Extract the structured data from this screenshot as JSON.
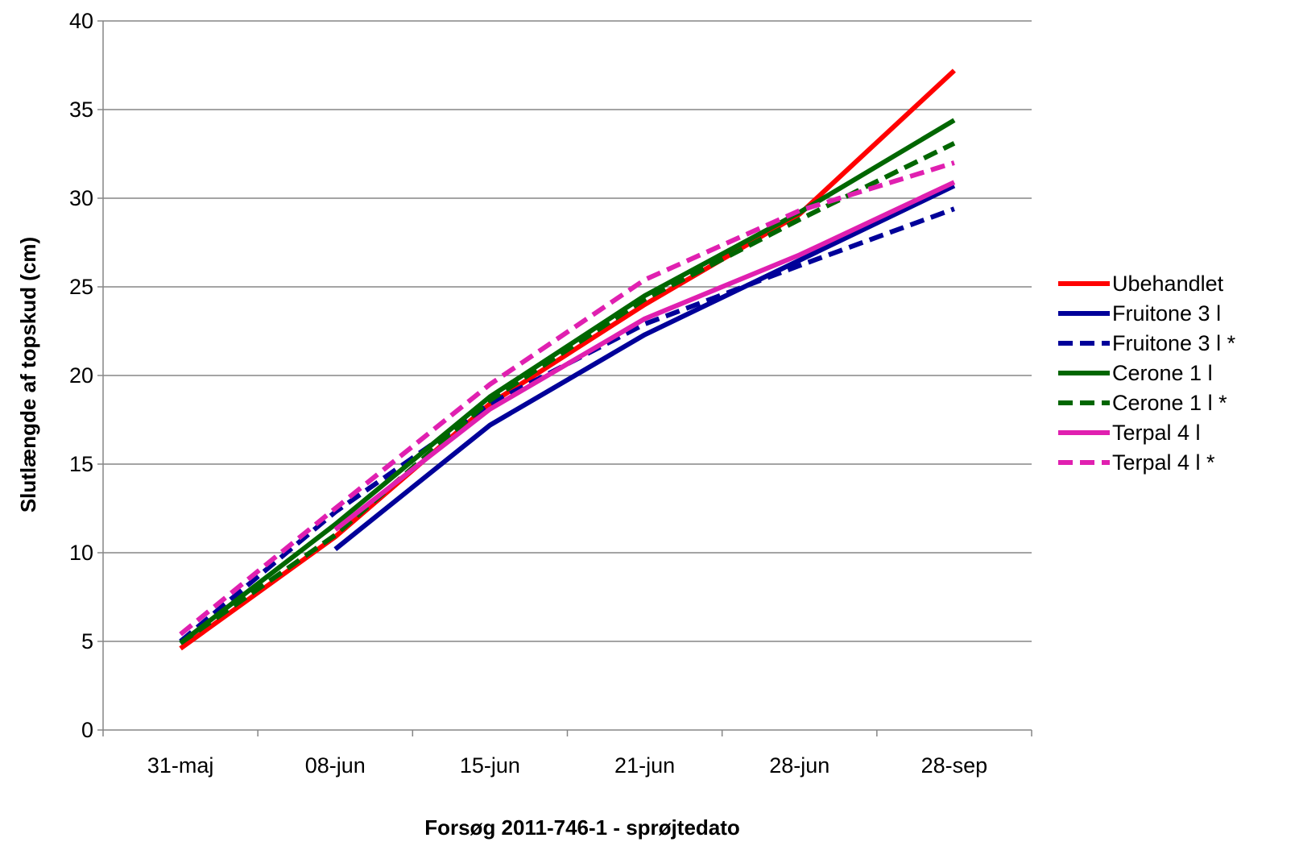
{
  "chart_data": {
    "type": "line",
    "title": "",
    "xlabel": "Forsøg 2011-746-1 - sprøjtedato",
    "ylabel": "Slutlængde af topskud (cm)",
    "ylim": [
      0,
      40
    ],
    "yticks": [
      0,
      5,
      10,
      15,
      20,
      25,
      30,
      35,
      40
    ],
    "categories": [
      "31-maj",
      "08-jun",
      "15-jun",
      "21-jun",
      "28-jun",
      "28-sep"
    ],
    "grid": "horizontal",
    "legend": "right",
    "series": [
      {
        "name": "Ubehandlet",
        "color": "#ff0000",
        "dash": "solid",
        "values": [
          4.6,
          10.9,
          18.4,
          24.0,
          29.1,
          37.2
        ]
      },
      {
        "name": "Fruitone 3 l",
        "color": "#000099",
        "dash": "solid",
        "values": [
          null,
          10.2,
          17.2,
          22.3,
          26.5,
          30.7
        ]
      },
      {
        "name": "Fruitone 3 l *",
        "color": "#000099",
        "dash": "dashed",
        "values": [
          5.0,
          12.3,
          18.4,
          22.9,
          26.2,
          29.4
        ]
      },
      {
        "name": "Cerone 1 l",
        "color": "#006600",
        "dash": "solid",
        "values": [
          4.9,
          11.6,
          18.8,
          24.5,
          29.2,
          34.4
        ]
      },
      {
        "name": "Cerone 1 l *",
        "color": "#006600",
        "dash": "dashed",
        "values": [
          4.9,
          11.0,
          18.6,
          24.3,
          28.8,
          33.1
        ]
      },
      {
        "name": "Terpal 4 l",
        "color": "#e020b0",
        "dash": "solid",
        "values": [
          null,
          11.3,
          18.1,
          23.2,
          26.8,
          30.9
        ]
      },
      {
        "name": "Terpal 4 l *",
        "color": "#e020b0",
        "dash": "dashed",
        "values": [
          5.4,
          12.5,
          19.5,
          25.4,
          29.3,
          32.0
        ]
      }
    ]
  }
}
